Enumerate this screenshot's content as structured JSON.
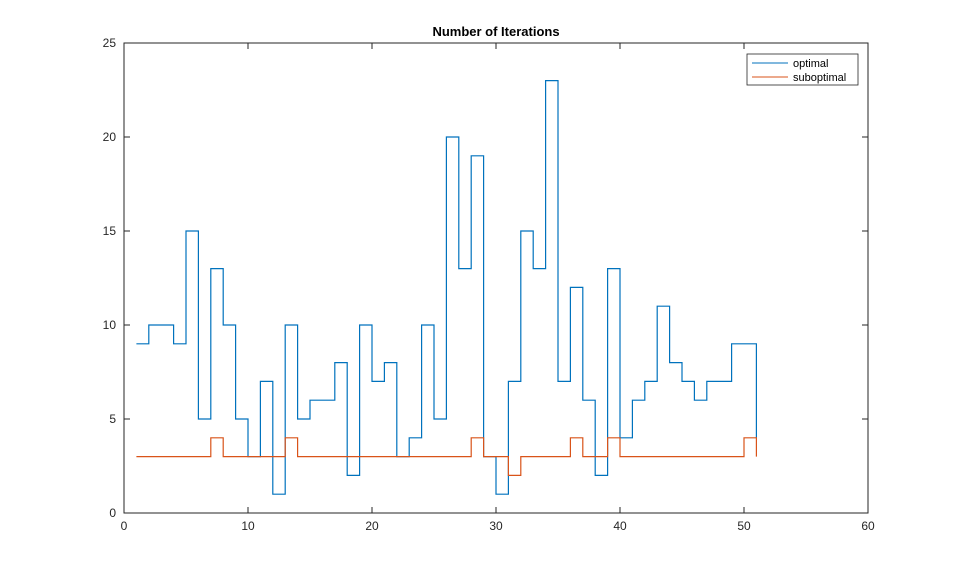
{
  "chart_data": {
    "type": "stairs",
    "title": "Number of Iterations",
    "xlabel": "",
    "ylabel": "",
    "xlim": [
      0,
      60
    ],
    "ylim": [
      0,
      25
    ],
    "xticks": [
      "0",
      "10",
      "20",
      "30",
      "40",
      "50",
      "60"
    ],
    "yticks": [
      "0",
      "5",
      "10",
      "15",
      "20",
      "25"
    ],
    "grid": false,
    "legend_position": "top-right",
    "x": [
      1,
      2,
      3,
      4,
      5,
      6,
      7,
      8,
      9,
      10,
      11,
      12,
      13,
      14,
      15,
      16,
      17,
      18,
      19,
      20,
      21,
      22,
      23,
      24,
      25,
      26,
      27,
      28,
      29,
      30,
      31,
      32,
      33,
      34,
      35,
      36,
      37,
      38,
      39,
      40,
      41,
      42,
      43,
      44,
      45,
      46,
      47,
      48,
      49,
      50,
      51
    ],
    "series": [
      {
        "name": "optimal",
        "color": "#0072BD",
        "values": [
          9,
          10,
          10,
          9,
          15,
          5,
          13,
          10,
          5,
          3,
          7,
          1,
          10,
          5,
          6,
          6,
          8,
          2,
          10,
          7,
          8,
          3,
          4,
          10,
          5,
          20,
          13,
          19,
          3,
          1,
          7,
          15,
          13,
          23,
          7,
          12,
          6,
          2,
          13,
          4,
          6,
          7,
          11,
          8,
          7,
          6,
          7,
          7,
          9,
          9,
          4
        ]
      },
      {
        "name": "suboptimal",
        "color": "#D95319",
        "values": [
          3,
          3,
          3,
          3,
          3,
          3,
          4,
          3,
          3,
          3,
          3,
          3,
          4,
          3,
          3,
          3,
          3,
          3,
          3,
          3,
          3,
          3,
          3,
          3,
          3,
          3,
          3,
          4,
          3,
          3,
          2,
          3,
          3,
          3,
          3,
          4,
          3,
          3,
          4,
          3,
          3,
          3,
          3,
          3,
          3,
          3,
          3,
          3,
          3,
          4,
          3
        ]
      }
    ]
  }
}
